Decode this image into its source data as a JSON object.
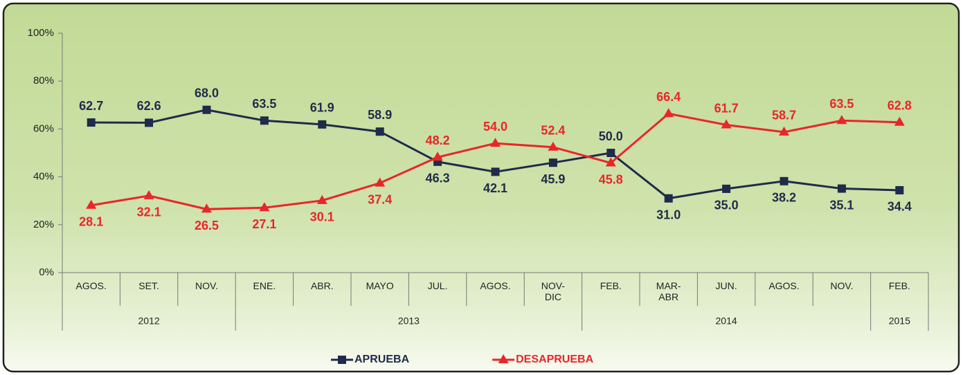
{
  "chart_data": {
    "type": "line",
    "category_groups": [
      {
        "label": "2012",
        "categories": [
          "AGOS.",
          "SET.",
          "NOV."
        ]
      },
      {
        "label": "2013",
        "categories": [
          "ENE.",
          "ABR.",
          "MAYO",
          "JUL.",
          "AGOS.",
          "NOV-DIC"
        ]
      },
      {
        "label": "2014",
        "categories": [
          "FEB.",
          "MAR-ABR",
          "JUN.",
          "AGOS.",
          "NOV."
        ]
      },
      {
        "label": "2015",
        "categories": [
          "FEB."
        ]
      }
    ],
    "series": [
      {
        "name": "APRUEBA",
        "color": "#1f2b4a",
        "marker": "square",
        "values": [
          62.7,
          62.6,
          68.0,
          63.5,
          61.9,
          58.9,
          46.3,
          42.1,
          45.9,
          50.0,
          31.0,
          35.0,
          38.2,
          35.1,
          34.4
        ],
        "value_labels": [
          "62.7",
          "62.6",
          "68.0",
          "63.5",
          "61.9",
          "58.9",
          "46.3",
          "42.1",
          "45.9",
          "50.0",
          "31.0",
          "35.0",
          "38.2",
          "35.1",
          "34.4"
        ]
      },
      {
        "name": "DESAPRUEBA",
        "color": "#e8262a",
        "marker": "triangle",
        "values": [
          28.1,
          32.1,
          26.5,
          27.1,
          30.1,
          37.4,
          48.2,
          54.0,
          52.4,
          45.8,
          66.4,
          61.7,
          58.7,
          63.5,
          62.8
        ],
        "value_labels": [
          "28.1",
          "32.1",
          "26.5",
          "27.1",
          "30.1",
          "37.4",
          "48.2",
          "54.0",
          "52.4",
          "45.8",
          "66.4",
          "61.7",
          "58.7",
          "63.5",
          "62.8"
        ]
      }
    ],
    "ylim": [
      0,
      100
    ],
    "yticks": [
      {
        "value": 0,
        "label": "0%"
      },
      {
        "value": 20,
        "label": "20%"
      },
      {
        "value": 40,
        "label": "40%"
      },
      {
        "value": 60,
        "label": "60%"
      },
      {
        "value": 80,
        "label": "80%"
      },
      {
        "value": 100,
        "label": "100%"
      }
    ],
    "grid": false,
    "legend": "bottom"
  }
}
